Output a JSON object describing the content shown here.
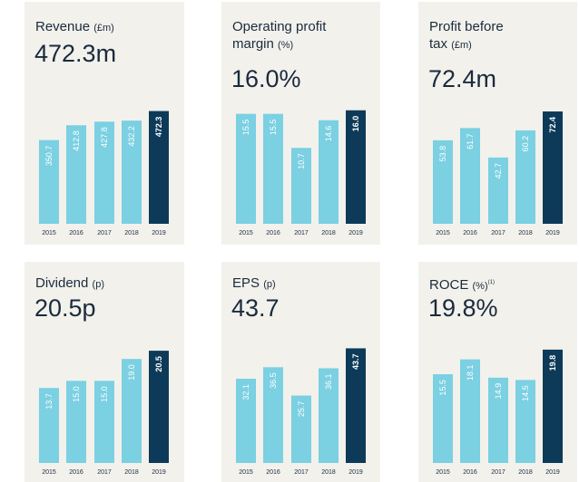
{
  "colors": {
    "panel_bg": "#f2f1ec",
    "bar": "#7bd0e2",
    "highlight": "#0d3a58",
    "text": "#1a2b3c"
  },
  "chart_data": [
    {
      "type": "bar",
      "title": "Revenue",
      "unit": "(£m)",
      "headline": "472.3m",
      "categories": [
        "2015",
        "2016",
        "2017",
        "2018",
        "2019"
      ],
      "values": [
        350.7,
        412.8,
        427.8,
        432.2,
        472.3
      ],
      "labels": [
        "350.7",
        "412.8",
        "427.8",
        "432.2",
        "472.3"
      ],
      "highlight_index": 4,
      "ylim": [
        0,
        520
      ]
    },
    {
      "type": "bar",
      "title": "Operating profit\nmargin",
      "unit": "(%)",
      "headline": "16.0%",
      "categories": [
        "2015",
        "2016",
        "2017",
        "2018",
        "2019"
      ],
      "values": [
        15.5,
        15.5,
        10.7,
        14.6,
        16.0
      ],
      "labels": [
        "15.5",
        "15.5",
        "10.7",
        "14.6",
        "16.0"
      ],
      "highlight_index": 4,
      "ylim": [
        0,
        17.5
      ]
    },
    {
      "type": "bar",
      "title": "Profit before\ntax",
      "unit": "(£m)",
      "headline": "72.4m",
      "categories": [
        "2015",
        "2016",
        "2017",
        "2018",
        "2019"
      ],
      "values": [
        53.8,
        61.7,
        42.7,
        60.2,
        72.4
      ],
      "labels": [
        "53.8",
        "61.7",
        "42.7",
        "60.2",
        "72.4"
      ],
      "highlight_index": 4,
      "ylim": [
        0,
        80
      ]
    },
    {
      "type": "bar",
      "title": "Dividend",
      "unit": "(p)",
      "headline": "20.5p",
      "categories": [
        "2015",
        "2016",
        "2017",
        "2018",
        "2019"
      ],
      "values": [
        13.7,
        15.0,
        15.0,
        19.0,
        20.5
      ],
      "labels": [
        "13.7",
        "15.0",
        "15.0",
        "19.0",
        "20.5"
      ],
      "highlight_index": 4,
      "ylim": [
        0,
        23
      ]
    },
    {
      "type": "bar",
      "title": "EPS",
      "unit": "(p)",
      "headline": "43.7",
      "categories": [
        "2015",
        "2016",
        "2017",
        "2018",
        "2019"
      ],
      "values": [
        32.1,
        36.5,
        25.7,
        36.1,
        43.7
      ],
      "labels": [
        "32.1",
        "36.5",
        "25.7",
        "36.1",
        "43.7"
      ],
      "highlight_index": 4,
      "ylim": [
        0,
        48
      ]
    },
    {
      "type": "bar",
      "title": "ROCE",
      "unit": "(%)",
      "footnote": "(1)",
      "headline": "19.8%",
      "categories": [
        "2015",
        "2016",
        "2017",
        "2018",
        "2019"
      ],
      "values": [
        15.5,
        18.1,
        14.9,
        14.5,
        19.8
      ],
      "labels": [
        "15.5",
        "18.1",
        "14.9",
        "14.5",
        "19.8"
      ],
      "highlight_index": 4,
      "ylim": [
        0,
        22
      ]
    }
  ]
}
